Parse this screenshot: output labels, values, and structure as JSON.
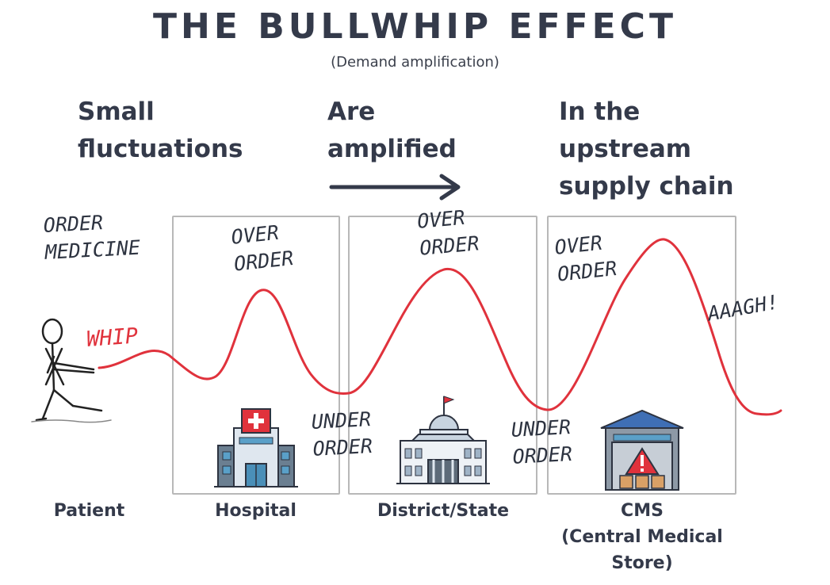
{
  "title": "THE BULLWHIP EFFECT",
  "subtitle": "(Demand amplification)",
  "headings": {
    "left": [
      "Small",
      "fluctuations"
    ],
    "middle": [
      "Are",
      "amplified"
    ],
    "right": [
      "In the",
      "upstream",
      "supply chain"
    ]
  },
  "annotations": {
    "order_medicine": [
      "ORDER",
      "MEDICINE"
    ],
    "whip": "WHIP",
    "over_order": [
      "OVER",
      "ORDER"
    ],
    "under_order": [
      "UNDER",
      "ORDER"
    ],
    "aaagh": "AAAGH!"
  },
  "stages": {
    "patient": "Patient",
    "hospital": "Hospital",
    "district": "District/State",
    "cms": [
      "CMS",
      "(Central Medical",
      "Store)"
    ]
  },
  "icons": [
    "stick-figure-icon",
    "hospital-building-icon",
    "government-building-icon",
    "warehouse-icon"
  ],
  "colors": {
    "wave": "#e0323c",
    "text": "#343a4a",
    "panel_border": "#b8b8b8"
  }
}
